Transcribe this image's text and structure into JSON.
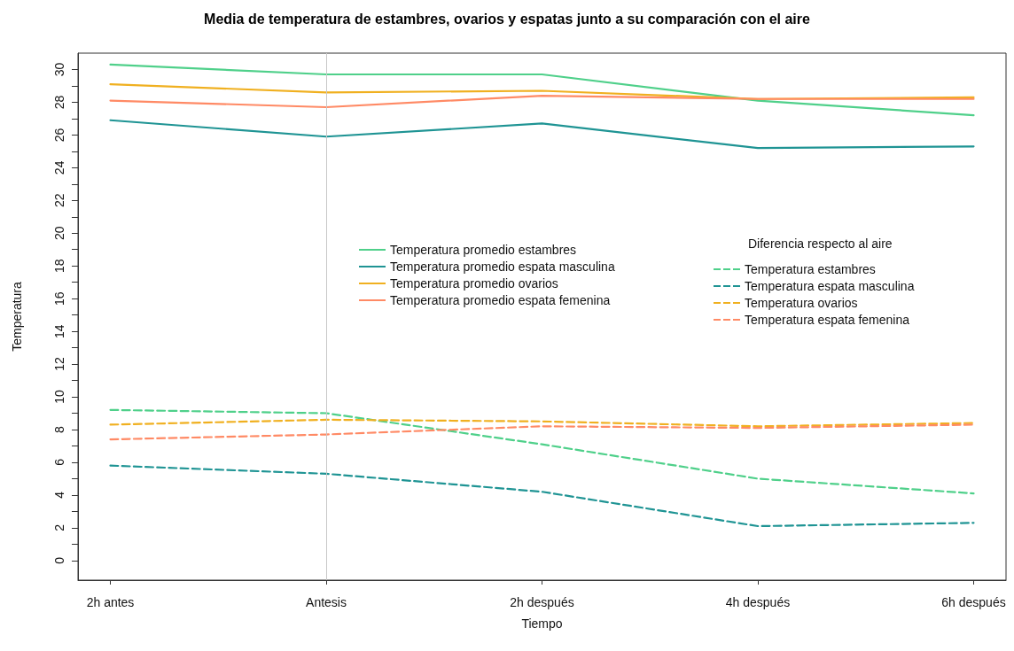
{
  "chart_data": {
    "type": "line",
    "title": "Media de temperatura de estambres, ovarios y espatas junto a su comparación con el aire",
    "xlabel": "Tiempo",
    "ylabel": "Temperatura",
    "legend_title": "Diferencia respecto al aire",
    "categories": [
      "2h antes",
      "Antesis",
      "2h después",
      "4h después",
      "6h después"
    ],
    "series": [
      {
        "name": "Temperatura promedio estambres",
        "color": "#4fd08a",
        "line_style": "solid",
        "values": [
          30.3,
          29.7,
          29.7,
          28.1,
          27.2
        ]
      },
      {
        "name": "Temperatura promedio espata masculina",
        "color": "#1f9494",
        "line_style": "solid",
        "values": [
          26.9,
          25.9,
          26.7,
          25.2,
          25.3
        ]
      },
      {
        "name": "Temperatura promedio ovarios",
        "color": "#f0b020",
        "line_style": "solid",
        "values": [
          29.1,
          28.6,
          28.7,
          28.2,
          28.3
        ]
      },
      {
        "name": "Temperatura promedio espata femenina",
        "color": "#ff8a65",
        "line_style": "solid",
        "values": [
          28.1,
          27.7,
          28.4,
          28.2,
          28.2
        ]
      },
      {
        "name": "Temperatura estambres",
        "color": "#4fd08a",
        "line_style": "dashed",
        "values": [
          9.2,
          9.0,
          7.1,
          5.0,
          4.1
        ]
      },
      {
        "name": "Temperatura espata masculina",
        "color": "#1f9494",
        "line_style": "dashed",
        "values": [
          5.8,
          5.3,
          4.2,
          2.1,
          2.3
        ]
      },
      {
        "name": "Temperatura ovarios",
        "color": "#f0b020",
        "line_style": "dashed",
        "values": [
          8.3,
          8.6,
          8.5,
          8.2,
          8.4
        ]
      },
      {
        "name": "Temperatura espata femenina",
        "color": "#ff8a65",
        "line_style": "dashed",
        "values": [
          7.4,
          7.7,
          8.2,
          8.1,
          8.3
        ]
      }
    ],
    "ylim": [
      -1.2,
      31
    ],
    "yticks": [
      0,
      {
        "value": 1,
        "label": null
      },
      2,
      {
        "value": 3,
        "label": null
      },
      4,
      {
        "value": 5,
        "label": null
      },
      6,
      {
        "value": 7,
        "label": null
      },
      8,
      {
        "value": 9,
        "label": null
      },
      10,
      {
        "value": 11,
        "label": null
      },
      12,
      {
        "value": 13,
        "label": null
      },
      14,
      {
        "value": 15,
        "label": null
      },
      16,
      {
        "value": 17,
        "label": null
      },
      18,
      {
        "value": 19,
        "label": null
      },
      20,
      {
        "value": 21,
        "label": null
      },
      22,
      {
        "value": 23,
        "label": null
      },
      24,
      {
        "value": 25,
        "label": null
      },
      26,
      {
        "value": 27,
        "label": null
      },
      28,
      {
        "value": 29,
        "label": null
      },
      30
    ],
    "ref_lines": [
      {
        "axis": "x",
        "value": "Antesis",
        "color": "#c8c8c8",
        "line_style": "solid"
      }
    ],
    "grid": false,
    "legend": "center",
    "marker": "none"
  }
}
